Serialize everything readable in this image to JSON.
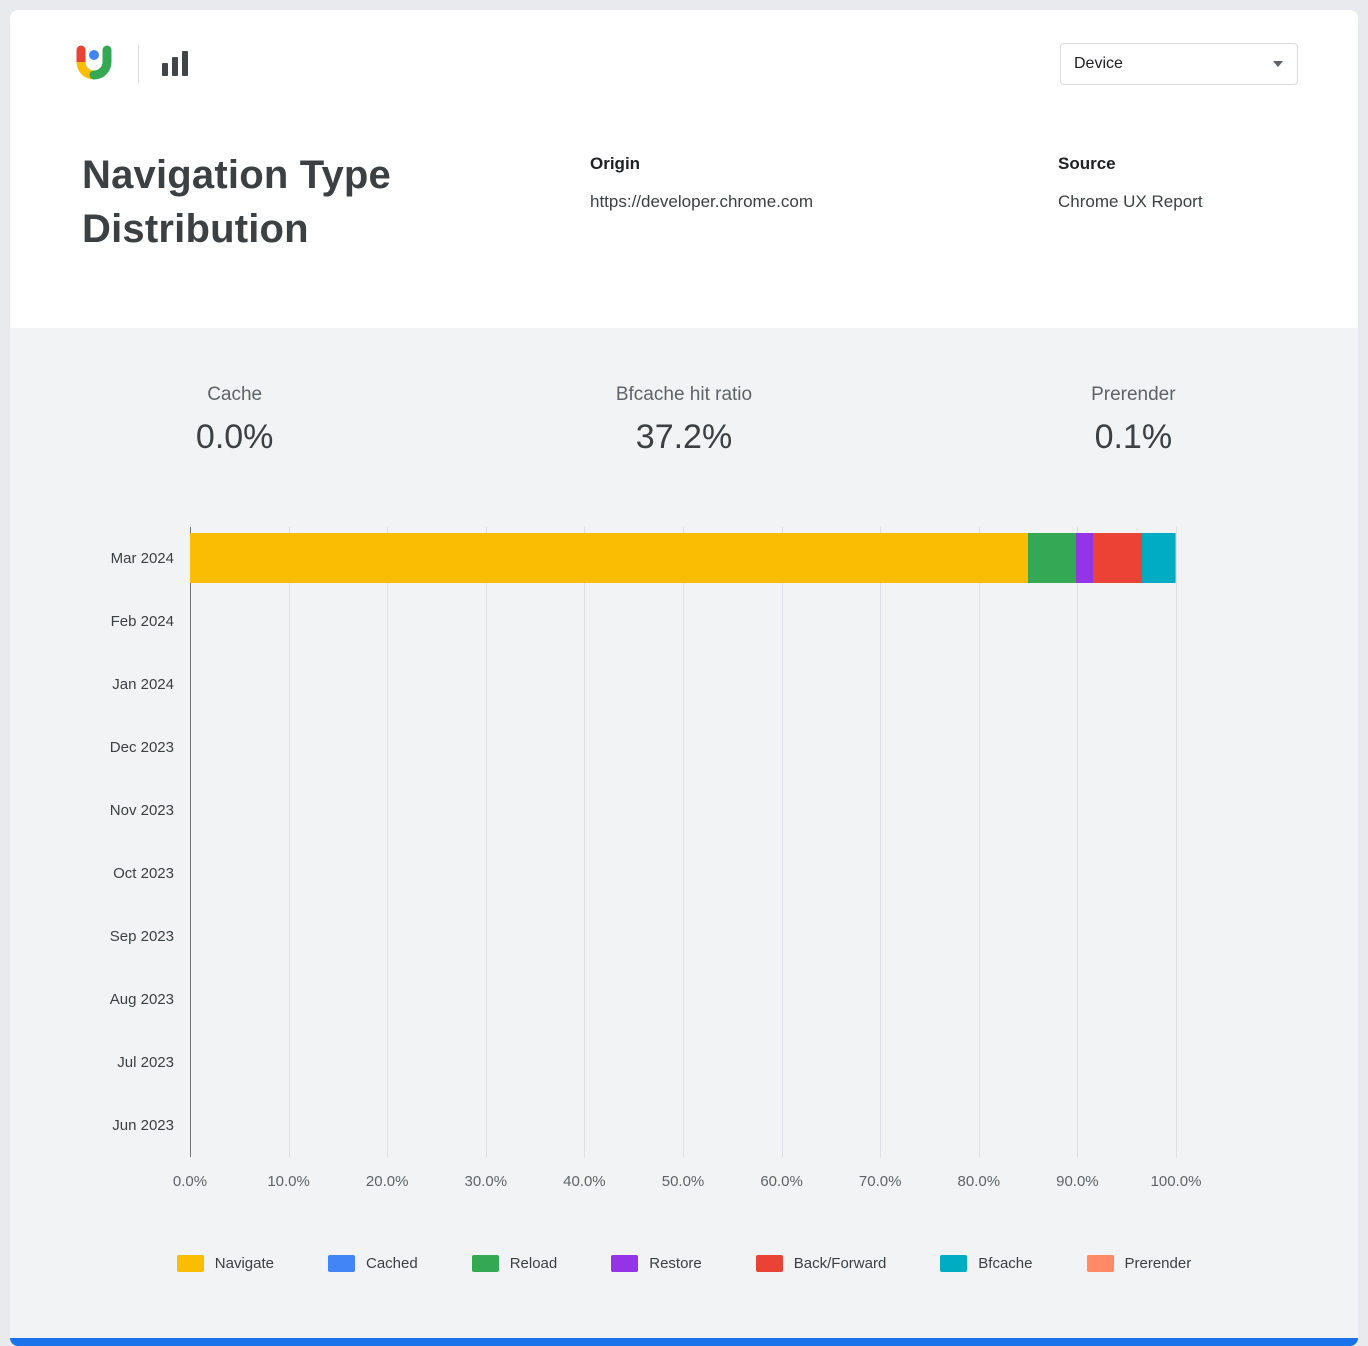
{
  "header": {
    "title": "Navigation Type Distribution",
    "device_dropdown": {
      "value": "Device"
    },
    "origin_label": "Origin",
    "origin_value": "https://developer.chrome.com",
    "source_label": "Source",
    "source_value": "Chrome UX Report"
  },
  "stats": [
    {
      "label": "Cache",
      "value": "0.0%"
    },
    {
      "label": "Bfcache hit ratio",
      "value": "37.2%"
    },
    {
      "label": "Prerender",
      "value": "0.1%"
    }
  ],
  "chart_data": {
    "type": "bar",
    "orientation": "horizontal",
    "stacked": true,
    "title": "Navigation Type Distribution",
    "categories": [
      "Mar 2024",
      "Feb 2024",
      "Jan 2024",
      "Dec 2023",
      "Nov 2023",
      "Oct 2023",
      "Sep 2023",
      "Aug 2023",
      "Jul 2023",
      "Jun 2023"
    ],
    "series": [
      {
        "name": "Navigate",
        "color": "#FBBC04",
        "values": [
          85.0,
          0,
          0,
          0,
          0,
          0,
          0,
          0,
          0,
          0
        ]
      },
      {
        "name": "Cached",
        "color": "#4285F4",
        "values": [
          0,
          0,
          0,
          0,
          0,
          0,
          0,
          0,
          0,
          0
        ]
      },
      {
        "name": "Reload",
        "color": "#34A853",
        "values": [
          4.9,
          0,
          0,
          0,
          0,
          0,
          0,
          0,
          0,
          0
        ]
      },
      {
        "name": "Restore",
        "color": "#9334E6",
        "values": [
          1.7,
          0,
          0,
          0,
          0,
          0,
          0,
          0,
          0,
          0
        ]
      },
      {
        "name": "Back/Forward",
        "color": "#EA4335",
        "values": [
          5.0,
          0,
          0,
          0,
          0,
          0,
          0,
          0,
          0,
          0
        ]
      },
      {
        "name": "Bfcache",
        "color": "#00ACC1",
        "values": [
          3.3,
          0,
          0,
          0,
          0,
          0,
          0,
          0,
          0,
          0
        ]
      },
      {
        "name": "Prerender",
        "color": "#FF8A65",
        "values": [
          0.1,
          0,
          0,
          0,
          0,
          0,
          0,
          0,
          0,
          0
        ]
      }
    ],
    "x_ticks": [
      "0.0%",
      "10.0%",
      "20.0%",
      "30.0%",
      "40.0%",
      "50.0%",
      "60.0%",
      "70.0%",
      "80.0%",
      "90.0%",
      "100.0%"
    ],
    "xlim": [
      0,
      100
    ],
    "grid": true,
    "legend_position": "bottom"
  },
  "footer": {
    "accent_color": "#1a73e8"
  }
}
